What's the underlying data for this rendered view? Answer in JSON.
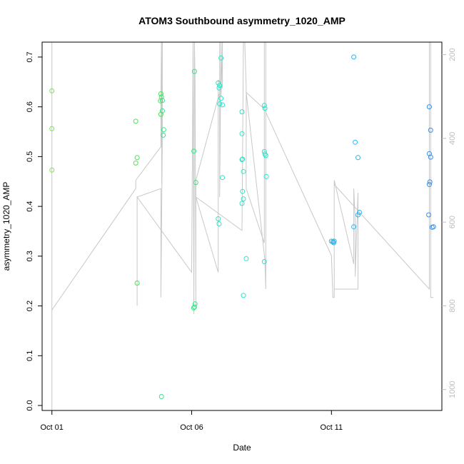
{
  "chart_data": {
    "type": "scatter",
    "title": "ATOM3 Southbound asymmetry_1020_AMP",
    "xlabel": "Date",
    "ylabel": "asymmetry_1020_AMP",
    "x_ticks": [
      {
        "label": "Oct 01",
        "day": 1
      },
      {
        "label": "Oct 06",
        "day": 6
      },
      {
        "label": "Oct 11",
        "day": 11
      }
    ],
    "xlim": [
      0.65,
      14.95
    ],
    "ylim": [
      -0.01,
      0.73
    ],
    "y_ticks": [
      0.0,
      0.1,
      0.2,
      0.3,
      0.4,
      0.5,
      0.6,
      0.7
    ],
    "y_tick_labels": [
      "0.0",
      "0.1",
      "0.2",
      "0.3",
      "0.4",
      "0.5",
      "0.6",
      "0.7"
    ],
    "right_axis": {
      "ylim": [
        1050,
        170
      ],
      "ticks": [
        200,
        400,
        600,
        800,
        1000
      ],
      "tick_labels": [
        "200",
        "400",
        "600",
        "800",
        "1000"
      ],
      "color": "#bdbdbd"
    },
    "points": [
      {
        "x": 1.0,
        "y": 0.632
      },
      {
        "x": 1.0,
        "y": 0.556
      },
      {
        "x": 1.0,
        "y": 0.473
      },
      {
        "x": 4.0,
        "y": 0.571
      },
      {
        "x": 4.05,
        "y": 0.498
      },
      {
        "x": 4.0,
        "y": 0.487
      },
      {
        "x": 4.05,
        "y": 0.246
      },
      {
        "x": 4.9,
        "y": 0.626
      },
      {
        "x": 4.92,
        "y": 0.62
      },
      {
        "x": 4.95,
        "y": 0.613
      },
      {
        "x": 4.88,
        "y": 0.612
      },
      {
        "x": 4.95,
        "y": 0.592
      },
      {
        "x": 4.9,
        "y": 0.585
      },
      {
        "x": 5.0,
        "y": 0.554
      },
      {
        "x": 4.98,
        "y": 0.543
      },
      {
        "x": 4.92,
        "y": 0.018
      },
      {
        "x": 6.1,
        "y": 0.671
      },
      {
        "x": 6.08,
        "y": 0.511
      },
      {
        "x": 6.15,
        "y": 0.448
      },
      {
        "x": 6.12,
        "y": 0.204
      },
      {
        "x": 6.1,
        "y": 0.198
      },
      {
        "x": 6.07,
        "y": 0.196
      },
      {
        "x": 6.95,
        "y": 0.648
      },
      {
        "x": 7.0,
        "y": 0.643
      },
      {
        "x": 6.98,
        "y": 0.638
      },
      {
        "x": 7.05,
        "y": 0.617
      },
      {
        "x": 7.0,
        "y": 0.606
      },
      {
        "x": 7.1,
        "y": 0.604
      },
      {
        "x": 7.1,
        "y": 0.458
      },
      {
        "x": 6.95,
        "y": 0.375
      },
      {
        "x": 6.98,
        "y": 0.365
      },
      {
        "x": 7.05,
        "y": 0.698
      },
      {
        "x": 7.8,
        "y": 0.59
      },
      {
        "x": 7.8,
        "y": 0.546
      },
      {
        "x": 7.82,
        "y": 0.495
      },
      {
        "x": 7.8,
        "y": 0.494
      },
      {
        "x": 7.85,
        "y": 0.47
      },
      {
        "x": 7.82,
        "y": 0.43
      },
      {
        "x": 7.85,
        "y": 0.415
      },
      {
        "x": 7.8,
        "y": 0.406
      },
      {
        "x": 7.95,
        "y": 0.295
      },
      {
        "x": 7.85,
        "y": 0.221
      },
      {
        "x": 8.6,
        "y": 0.603
      },
      {
        "x": 8.62,
        "y": 0.597
      },
      {
        "x": 8.6,
        "y": 0.51
      },
      {
        "x": 8.65,
        "y": 0.502
      },
      {
        "x": 8.62,
        "y": 0.505
      },
      {
        "x": 8.67,
        "y": 0.46
      },
      {
        "x": 8.6,
        "y": 0.289
      },
      {
        "x": 11.0,
        "y": 0.33
      },
      {
        "x": 11.05,
        "y": 0.329
      },
      {
        "x": 11.1,
        "y": 0.33
      },
      {
        "x": 11.08,
        "y": 0.327
      },
      {
        "x": 11.8,
        "y": 0.7
      },
      {
        "x": 11.85,
        "y": 0.529
      },
      {
        "x": 11.95,
        "y": 0.498
      },
      {
        "x": 12.0,
        "y": 0.388
      },
      {
        "x": 11.95,
        "y": 0.383
      },
      {
        "x": 11.8,
        "y": 0.359
      },
      {
        "x": 14.5,
        "y": 0.6
      },
      {
        "x": 14.55,
        "y": 0.553
      },
      {
        "x": 14.5,
        "y": 0.506
      },
      {
        "x": 14.55,
        "y": 0.499
      },
      {
        "x": 14.52,
        "y": 0.449
      },
      {
        "x": 14.5,
        "y": 0.444
      },
      {
        "x": 14.48,
        "y": 0.383
      },
      {
        "x": 14.6,
        "y": 0.358
      },
      {
        "x": 14.65,
        "y": 0.359
      }
    ],
    "line_series": [
      {
        "x": 1.0,
        "p": 1050
      },
      {
        "x": 1.0,
        "p": 170
      },
      {
        "x": 1.0,
        "p": 810
      },
      {
        "x": 4.0,
        "p": 520
      },
      {
        "x": 4.0,
        "p": 500
      },
      {
        "x": 4.9,
        "p": 420
      },
      {
        "x": 4.9,
        "p": 315
      },
      {
        "x": 4.92,
        "p": 170
      },
      {
        "x": 4.93,
        "p": 510
      },
      {
        "x": 4.95,
        "p": 170
      },
      {
        "x": 4.95,
        "p": 400
      },
      {
        "x": 4.9,
        "p": 780
      },
      {
        "x": 4.9,
        "p": 520
      },
      {
        "x": 4.05,
        "p": 540
      },
      {
        "x": 4.05,
        "p": 800
      },
      {
        "x": 4.05,
        "p": 540
      },
      {
        "x": 6.0,
        "p": 720
      },
      {
        "x": 6.05,
        "p": 170
      },
      {
        "x": 6.08,
        "p": 820
      },
      {
        "x": 6.1,
        "p": 170
      },
      {
        "x": 6.12,
        "p": 260
      },
      {
        "x": 6.15,
        "p": 800
      },
      {
        "x": 6.15,
        "p": 500
      },
      {
        "x": 7.0,
        "p": 290
      },
      {
        "x": 7.0,
        "p": 170
      },
      {
        "x": 7.0,
        "p": 540
      },
      {
        "x": 7.05,
        "p": 170
      },
      {
        "x": 7.05,
        "p": 300
      },
      {
        "x": 7.1,
        "p": 170
      },
      {
        "x": 7.1,
        "p": 280
      },
      {
        "x": 6.95,
        "p": 260
      },
      {
        "x": 6.95,
        "p": 720
      },
      {
        "x": 6.15,
        "p": 540
      },
      {
        "x": 7.8,
        "p": 620
      },
      {
        "x": 7.85,
        "p": 170
      },
      {
        "x": 7.9,
        "p": 170
      },
      {
        "x": 7.95,
        "p": 280
      },
      {
        "x": 7.95,
        "p": 520
      },
      {
        "x": 8.6,
        "p": 650
      },
      {
        "x": 8.6,
        "p": 170
      },
      {
        "x": 8.65,
        "p": 170
      },
      {
        "x": 8.65,
        "p": 760
      },
      {
        "x": 8.62,
        "p": 690
      },
      {
        "x": 7.95,
        "p": 290
      },
      {
        "x": 8.6,
        "p": 330
      },
      {
        "x": 11.0,
        "p": 680
      },
      {
        "x": 11.05,
        "p": 780
      },
      {
        "x": 11.1,
        "p": 780
      },
      {
        "x": 11.1,
        "p": 500
      },
      {
        "x": 11.8,
        "p": 700
      },
      {
        "x": 11.8,
        "p": 520
      },
      {
        "x": 11.85,
        "p": 600
      },
      {
        "x": 11.85,
        "p": 730
      },
      {
        "x": 11.95,
        "p": 530
      },
      {
        "x": 11.95,
        "p": 760
      },
      {
        "x": 11.1,
        "p": 760
      },
      {
        "x": 11.1,
        "p": 510
      },
      {
        "x": 14.5,
        "p": 760
      },
      {
        "x": 14.5,
        "p": 170
      },
      {
        "x": 14.55,
        "p": 170
      },
      {
        "x": 14.55,
        "p": 780
      },
      {
        "x": 14.65,
        "p": 780
      }
    ],
    "point_colors": [
      "#7ee055",
      "#4be355",
      "#38e38a",
      "#2fe3c8",
      "#2cdcea",
      "#2fb4ea",
      "#3a8ee6"
    ],
    "line_color": "#c8c8c8",
    "grid": false,
    "legend": "none"
  }
}
